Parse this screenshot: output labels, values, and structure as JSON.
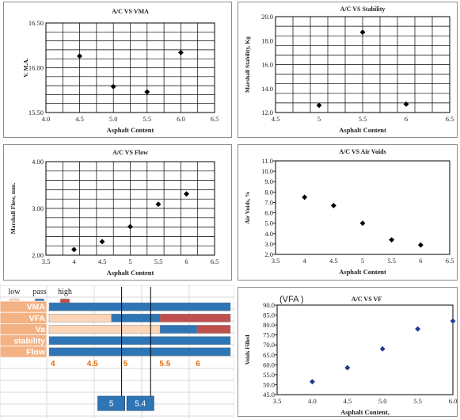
{
  "chart_data": [
    {
      "type": "scatter",
      "title": "A/C VS VMA",
      "xlabel": "Asphalt Content",
      "ylabel": "V. M.A.",
      "xlim": [
        4.0,
        6.5
      ],
      "ylim": [
        15.5,
        16.5
      ],
      "xticks": [
        "4.0",
        "4.5",
        "5.0",
        "5.5",
        "6.0",
        "6.5"
      ],
      "yticks": [
        "15.50",
        "16.00",
        "16.50"
      ],
      "grid": true,
      "x": [
        4.5,
        5.0,
        5.5,
        6.0
      ],
      "y": [
        16.13,
        15.79,
        15.73,
        16.17
      ],
      "fit": "polynomial"
    },
    {
      "type": "scatter",
      "title": "A/C VS Stability",
      "xlabel": "Asphalt Content",
      "ylabel": "Marshall Stability, Kg",
      "xlim": [
        4.5,
        6.5
      ],
      "ylim": [
        12.0,
        20.0
      ],
      "xticks": [
        "4.5",
        "5",
        "5.5",
        "6",
        "6.5"
      ],
      "yticks": [
        "12.0",
        "14.0",
        "16.0",
        "18.0",
        "20.0"
      ],
      "grid": true,
      "x": [
        5.0,
        5.5,
        6.0
      ],
      "y": [
        12.6,
        18.7,
        12.7
      ],
      "fit": "polynomial"
    },
    {
      "type": "scatter",
      "title": "A/C VS Flow",
      "xlabel": "Asphalt Content",
      "ylabel": "Marshall Flow, mm.",
      "xlim": [
        3.5,
        6.5
      ],
      "ylim": [
        2.0,
        4.0
      ],
      "xticks": [
        "3.5",
        "4",
        "4.5",
        "5",
        "5.5",
        "6",
        "6.5"
      ],
      "yticks": [
        "2.00",
        "3.00",
        "4.00"
      ],
      "grid": true,
      "x": [
        4.0,
        4.5,
        5.0,
        5.5,
        6.0
      ],
      "y": [
        2.12,
        2.29,
        2.61,
        3.09,
        3.31
      ],
      "fit": "polynomial"
    },
    {
      "type": "scatter",
      "title": "A/C VS Air Voids",
      "xlabel": "Asphalt Content",
      "ylabel": "Air Voids, %",
      "xlim": [
        3.5,
        6.5
      ],
      "ylim": [
        2.0,
        11.0
      ],
      "xticks": [
        "3.5",
        "4",
        "4.5",
        "5",
        "5.5",
        "6",
        "6.5"
      ],
      "yticks": [
        "2.0",
        "3.0",
        "4.0",
        "5.0",
        "6.0",
        "7.0",
        "8.0",
        "9.0",
        "10.0",
        "11.0"
      ],
      "grid": false,
      "x": [
        4.0,
        4.5,
        5.0,
        5.5,
        6.0
      ],
      "y": [
        7.5,
        6.7,
        5.0,
        3.4,
        2.9
      ],
      "fit": "polynomial"
    },
    {
      "type": "bar",
      "orientation": "horizontal",
      "legend": [
        "low",
        "pass",
        "high"
      ],
      "legend_colors": [
        "#FBD5B5",
        "#2E75B6",
        "#C0504D"
      ],
      "categories": [
        "VMA",
        "VFA",
        "Va",
        "stability",
        "Flow"
      ],
      "xticks": [
        "4",
        "4.5",
        "5",
        "5.5",
        "6"
      ],
      "xlim": [
        4.0,
        6.5
      ],
      "segments": [
        [
          {
            "status": "pass",
            "from": 4.0,
            "to": 6.5
          }
        ],
        [
          {
            "status": "low",
            "from": 4.0,
            "to": 4.86
          },
          {
            "status": "pass",
            "from": 4.86,
            "to": 5.53
          },
          {
            "status": "high",
            "from": 5.53,
            "to": 6.5
          }
        ],
        [
          {
            "status": "low",
            "from": 4.0,
            "to": 5.53
          },
          {
            "status": "pass",
            "from": 5.53,
            "to": 6.04
          },
          {
            "status": "high",
            "from": 6.04,
            "to": 6.5
          }
        ],
        [
          {
            "status": "pass",
            "from": 4.0,
            "to": 6.5
          }
        ],
        [
          {
            "status": "pass",
            "from": 4.0,
            "to": 6.5
          }
        ]
      ],
      "markers": [
        {
          "value": 5.0,
          "label": "5"
        },
        {
          "value": 5.4,
          "label": "5.4"
        }
      ]
    },
    {
      "type": "scatter",
      "title": "A/C VS VF",
      "corner_label": "(VFA )",
      "xlabel": "Asphalt Content,",
      "ylabel": "Voids Filled",
      "xlim": [
        3.5,
        6.0
      ],
      "ylim": [
        45.0,
        90.0
      ],
      "xticks": [
        "3.5",
        "4.0",
        "4.5",
        "5.0",
        "5.5",
        "6.0"
      ],
      "yticks": [
        "45.0",
        "50.0",
        "55.0",
        "60.0",
        "65.0",
        "70.0",
        "75.0",
        "80.0",
        "85.0",
        "90.0"
      ],
      "grid": false,
      "x": [
        4.0,
        4.5,
        5.0,
        5.5,
        6.0
      ],
      "y": [
        51.5,
        58.5,
        68.0,
        78.0,
        82.0
      ],
      "fit": "polynomial"
    }
  ]
}
